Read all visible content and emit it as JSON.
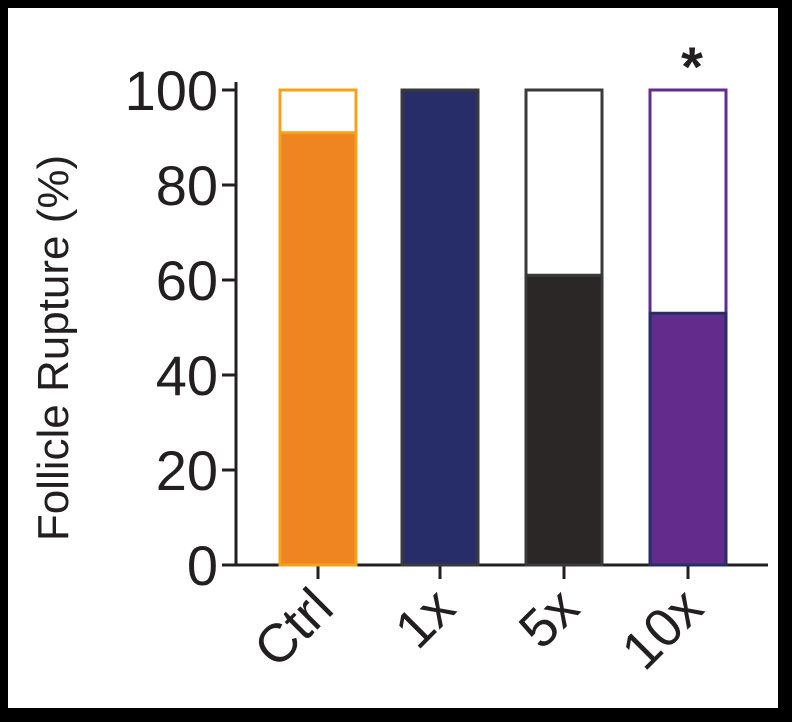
{
  "chart_data": {
    "type": "bar",
    "title": "",
    "xlabel": "",
    "ylabel": "Follicle Rupture (%)",
    "ylim": [
      0,
      100
    ],
    "yticks": [
      0,
      20,
      40,
      60,
      80,
      100
    ],
    "categories": [
      "Ctrl",
      "1x",
      "5x",
      "10x"
    ],
    "values": [
      91,
      100,
      61,
      53
    ],
    "total": [
      100,
      100,
      100,
      100
    ],
    "annotations": [
      "",
      "",
      "",
      "*"
    ],
    "colors": {
      "fill": [
        "#ee8520",
        "#262d68",
        "#2b2726",
        "#632b8c"
      ],
      "outline": [
        "#f5a11a",
        "#3a3a3a",
        "#3a3a3a",
        "#632b8c"
      ],
      "axis": "#231f20"
    }
  }
}
